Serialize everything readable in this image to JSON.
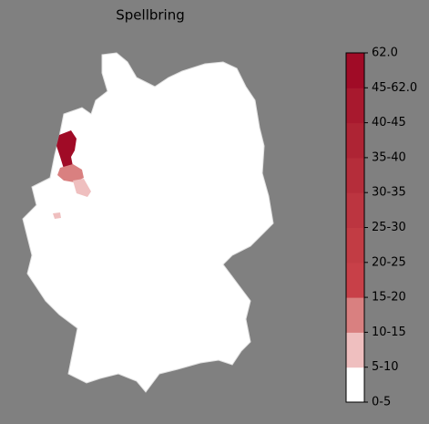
{
  "title": "Spellbring",
  "colorbar": {
    "labels": [
      "0-5",
      "5-10",
      "10-15",
      "15-20",
      "20-25",
      "25-30",
      "30-35",
      "35-40",
      "40-45",
      "45-62.0",
      "62.0"
    ],
    "colors": [
      "#ffffff",
      "#efbfbf",
      "#d98080",
      "#c84048",
      "#c23c44",
      "#bc3540",
      "#b52d3a",
      "#ae2434",
      "#a8192e",
      "#a00b26"
    ]
  }
}
